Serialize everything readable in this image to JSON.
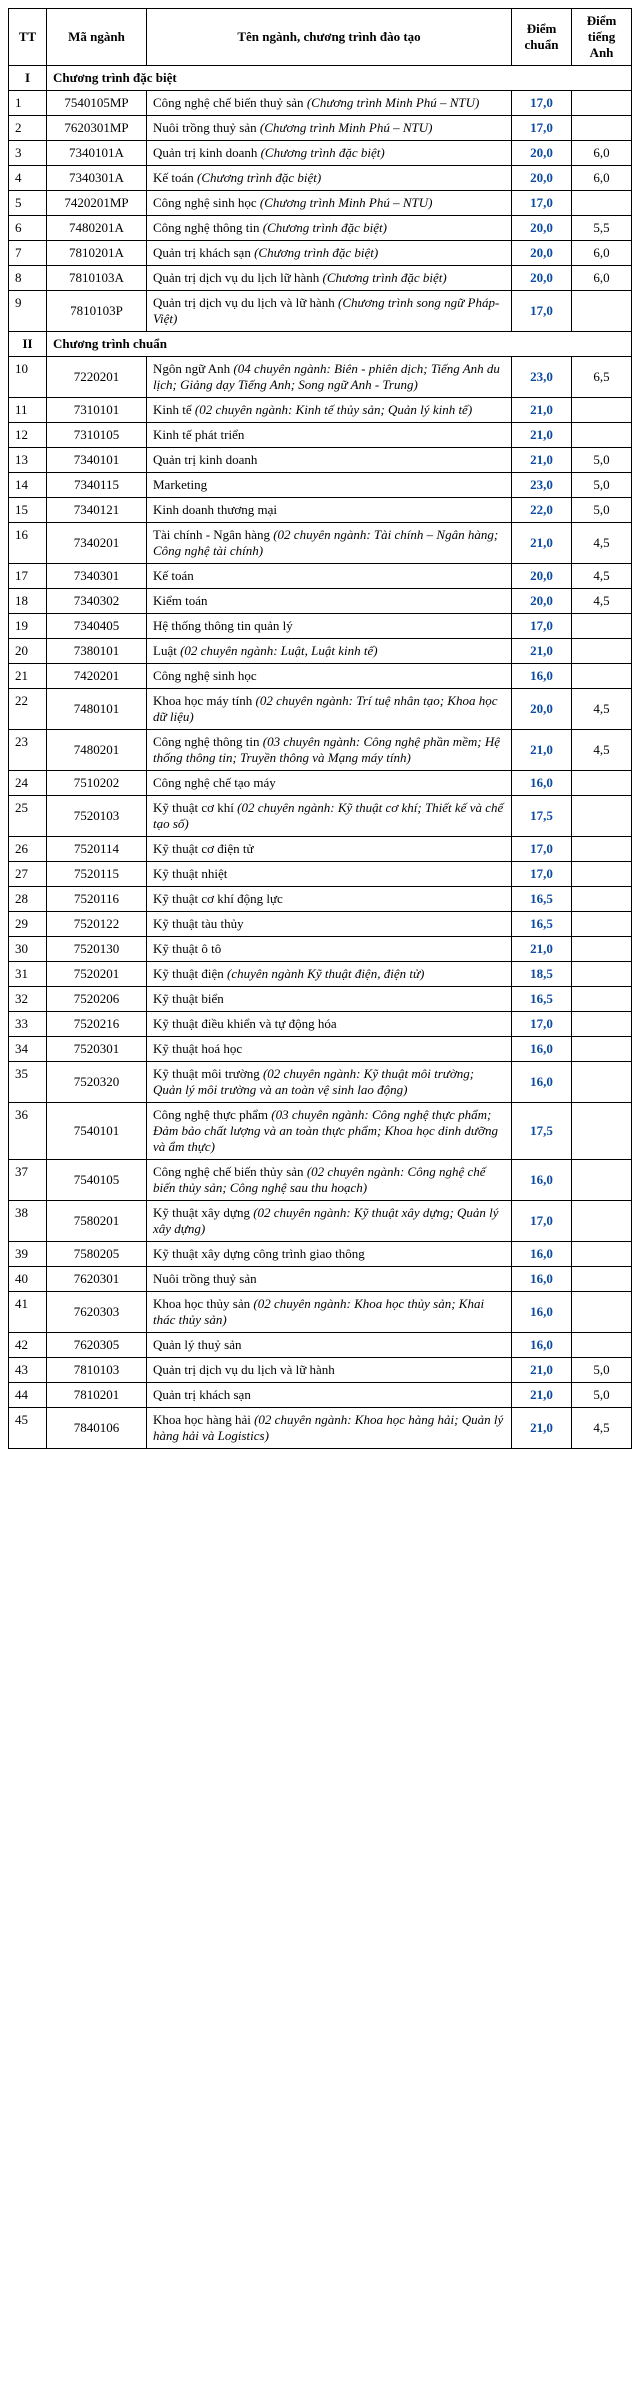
{
  "headers": {
    "tt": "TT",
    "ma_nganh": "Mã ngành",
    "ten_nganh": "Tên ngành, chương trình đào tạo",
    "diem_chuan": "Điểm chuẩn",
    "diem_anh": "Điểm tiếng Anh"
  },
  "sections": [
    {
      "num": "I",
      "title": "Chương trình đặc biệt",
      "rows": [
        {
          "tt": "1",
          "ma": "7540105MP",
          "ten": "Công nghệ chế biến thuỷ sản ",
          "it": "(Chương trình Minh Phú – NTU)",
          "score": "17,0",
          "eng": ""
        },
        {
          "tt": "2",
          "ma": "7620301MP",
          "ten": "Nuôi trồng thuỷ sản ",
          "it": "(Chương trình Minh Phú – NTU)",
          "score": "17,0",
          "eng": ""
        },
        {
          "tt": "3",
          "ma": "7340101A",
          "ten": "Quản trị kinh doanh ",
          "it": "(Chương trình đặc biệt)",
          "score": "20,0",
          "eng": "6,0"
        },
        {
          "tt": "4",
          "ma": "7340301A",
          "ten": "Kế toán ",
          "it": "(Chương trình đặc biệt)",
          "score": "20,0",
          "eng": "6,0"
        },
        {
          "tt": "5",
          "ma": "7420201MP",
          "ten": "Công nghệ sinh học ",
          "it": "(Chương trình Minh Phú – NTU)",
          "score": "17,0",
          "eng": ""
        },
        {
          "tt": "6",
          "ma": "7480201A",
          "ten": "Công nghệ thông tin ",
          "it": "(Chương trình đặc biệt)",
          "score": "20,0",
          "eng": "5,5"
        },
        {
          "tt": "7",
          "ma": "7810201A",
          "ten": "Quản trị khách sạn ",
          "it": "(Chương trình đặc biệt)",
          "score": "20,0",
          "eng": "6,0"
        },
        {
          "tt": "8",
          "ma": "7810103A",
          "ten": "Quản trị dịch vụ du lịch lữ hành ",
          "it": "(Chương trình đặc biệt)",
          "score": "20,0",
          "eng": "6,0"
        },
        {
          "tt": "9",
          "ma": "7810103P",
          "ten": "Quản trị dịch vụ du lịch và lữ hành ",
          "it": "(Chương trình song ngữ Pháp-Việt)",
          "score": "17,0",
          "eng": ""
        }
      ]
    },
    {
      "num": "II",
      "title": "Chương trình chuẩn",
      "rows": [
        {
          "tt": "10",
          "ma": "7220201",
          "ten": "Ngôn ngữ Anh ",
          "it": "(04 chuyên ngành: Biên - phiên dịch; Tiếng Anh du lịch; Giảng dạy Tiếng Anh; Song ngữ Anh - Trung)",
          "score": "23,0",
          "eng": "6,5"
        },
        {
          "tt": "11",
          "ma": "7310101",
          "ten": "Kinh tế ",
          "it": "(02 chuyên ngành: Kinh tế thủy sản; Quản lý kinh tế)",
          "score": "21,0",
          "eng": ""
        },
        {
          "tt": "12",
          "ma": "7310105",
          "ten": "Kinh tế phát triển",
          "it": "",
          "score": "21,0",
          "eng": ""
        },
        {
          "tt": "13",
          "ma": "7340101",
          "ten": "Quản trị kinh doanh",
          "it": "",
          "score": "21,0",
          "eng": "5,0"
        },
        {
          "tt": "14",
          "ma": "7340115",
          "ten": "Marketing",
          "it": "",
          "score": "23,0",
          "eng": "5,0"
        },
        {
          "tt": "15",
          "ma": "7340121",
          "ten": "Kinh doanh thương mại",
          "it": "",
          "score": "22,0",
          "eng": "5,0"
        },
        {
          "tt": "16",
          "ma": "7340201",
          "ten": "Tài chính - Ngân hàng ",
          "it": "(02 chuyên ngành: Tài chính – Ngân hàng; Công nghệ tài chính)",
          "score": "21,0",
          "eng": "4,5"
        },
        {
          "tt": "17",
          "ma": "7340301",
          "ten": "Kế toán",
          "it": "",
          "score": "20,0",
          "eng": "4,5"
        },
        {
          "tt": "18",
          "ma": "7340302",
          "ten": "Kiểm toán",
          "it": "",
          "score": "20,0",
          "eng": "4,5"
        },
        {
          "tt": "19",
          "ma": "7340405",
          "ten": "Hệ thống thông tin quản lý",
          "it": "",
          "score": "17,0",
          "eng": ""
        },
        {
          "tt": "20",
          "ma": "7380101",
          "ten": "Luật ",
          "it": "(02 chuyên ngành: Luật, Luật kinh tế)",
          "score": "21,0",
          "eng": ""
        },
        {
          "tt": "21",
          "ma": "7420201",
          "ten": "Công nghệ sinh học",
          "it": "",
          "score": "16,0",
          "eng": ""
        },
        {
          "tt": "22",
          "ma": "7480101",
          "ten": "Khoa học máy tính ",
          "it": "(02 chuyên ngành: Trí tuệ nhân tạo; Khoa học dữ liệu)",
          "score": "20,0",
          "eng": "4,5"
        },
        {
          "tt": "23",
          "ma": "7480201",
          "ten": "Công nghệ thông tin ",
          "it": "(03 chuyên ngành: Công nghệ phần mềm; Hệ thống thông tin; Truyền thông và Mạng máy tính)",
          "score": "21,0",
          "eng": "4,5"
        },
        {
          "tt": "24",
          "ma": "7510202",
          "ten": "Công nghệ chế tạo máy",
          "it": "",
          "score": "16,0",
          "eng": ""
        },
        {
          "tt": "25",
          "ma": "7520103",
          "ten": "Kỹ thuật cơ khí ",
          "it": "(02 chuyên ngành: Kỹ thuật cơ khí; Thiết kế và chế tạo số)",
          "score": "17,5",
          "eng": ""
        },
        {
          "tt": "26",
          "ma": "7520114",
          "ten": "Kỹ thuật cơ điện tử",
          "it": "",
          "score": "17,0",
          "eng": ""
        },
        {
          "tt": "27",
          "ma": "7520115",
          "ten": "Kỹ thuật nhiệt",
          "it": "",
          "score": "17,0",
          "eng": ""
        },
        {
          "tt": "28",
          "ma": "7520116",
          "ten": "Kỹ thuật cơ khí động lực",
          "it": "",
          "score": "16,5",
          "eng": ""
        },
        {
          "tt": "29",
          "ma": "7520122",
          "ten": "Kỹ thuật tàu thủy",
          "it": "",
          "score": "16,5",
          "eng": ""
        },
        {
          "tt": "30",
          "ma": "7520130",
          "ten": "Kỹ thuật ô tô",
          "it": "",
          "score": "21,0",
          "eng": ""
        },
        {
          "tt": "31",
          "ma": "7520201",
          "ten": "Kỹ thuật điện ",
          "it": "(chuyên ngành Kỹ thuật điện, điện tử)",
          "score": "18,5",
          "eng": ""
        },
        {
          "tt": "32",
          "ma": "7520206",
          "ten": "Kỹ thuật biển",
          "it": "",
          "score": "16,5",
          "eng": ""
        },
        {
          "tt": "33",
          "ma": "7520216",
          "ten": "Kỹ thuật điều khiển và tự động hóa",
          "it": "",
          "score": "17,0",
          "eng": ""
        },
        {
          "tt": "34",
          "ma": "7520301",
          "ten": "Kỹ thuật hoá học",
          "it": "",
          "score": "16,0",
          "eng": ""
        },
        {
          "tt": "35",
          "ma": "7520320",
          "ten": "Kỹ thuật môi trường ",
          "it": "(02 chuyên ngành: Kỹ thuật môi trường; Quản lý môi trường và an toàn vệ sinh lao động)",
          "score": "16,0",
          "eng": ""
        },
        {
          "tt": "36",
          "ma": "7540101",
          "ten": "Công nghệ thực phẩm ",
          "it": "(03 chuyên ngành: Công nghệ thực phẩm; Đảm bảo chất lượng và an toàn thực phẩm; Khoa học dinh dưỡng và ẩm thực)",
          "score": "17,5",
          "eng": ""
        },
        {
          "tt": "37",
          "ma": "7540105",
          "ten": "Công nghệ chế biến thủy sản ",
          "it": "(02 chuyên ngành: Công nghệ chế biến thủy sản; Công nghệ sau thu hoạch)",
          "score": "16,0",
          "eng": ""
        },
        {
          "tt": "38",
          "ma": "7580201",
          "ten": "Kỹ thuật xây dựng ",
          "it": "(02 chuyên ngành: Kỹ thuật xây dựng; Quản lý xây dựng)",
          "score": "17,0",
          "eng": ""
        },
        {
          "tt": "39",
          "ma": "7580205",
          "ten": "Kỹ thuật xây dựng công trình giao thông",
          "it": "",
          "score": "16,0",
          "eng": ""
        },
        {
          "tt": "40",
          "ma": "7620301",
          "ten": "Nuôi trồng thuỷ sản",
          "it": "",
          "score": "16,0",
          "eng": ""
        },
        {
          "tt": "41",
          "ma": "7620303",
          "link": "Khoa học thủy sản",
          "it": " (02 chuyên ngành: Khoa học thủy sản; Khai thác thủy sản)",
          "score": "16,0",
          "eng": ""
        },
        {
          "tt": "42",
          "ma": "7620305",
          "ten": "Quản lý thuỷ sản",
          "it": "",
          "score": "16,0",
          "eng": ""
        },
        {
          "tt": "43",
          "ma": "7810103",
          "ten": "Quản trị dịch vụ du lịch và lữ hành",
          "it": "",
          "score": "21,0",
          "eng": "5,0"
        },
        {
          "tt": "44",
          "ma": "7810201",
          "ten": "Quản trị khách sạn",
          "it": "",
          "score": "21,0",
          "eng": "5,0"
        },
        {
          "tt": "45",
          "ma": "7840106",
          "ten": "Khoa học hàng hải ",
          "it": "(02 chuyên ngành: Khoa học hàng hải; Quản lý hàng hải và Logistics)",
          "score": "21,0",
          "eng": "4,5"
        }
      ]
    }
  ]
}
